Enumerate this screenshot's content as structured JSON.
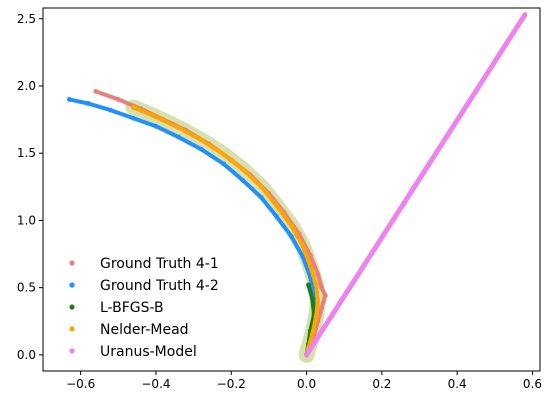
{
  "chart_data": {
    "type": "scatter",
    "title": "",
    "xlabel": "",
    "ylabel": "",
    "xlim": [
      -0.7,
      0.62
    ],
    "ylim": [
      -0.12,
      2.58
    ],
    "xticks": [
      -0.6,
      -0.4,
      -0.2,
      0.0,
      0.2,
      0.4,
      0.6
    ],
    "xtick_labels": [
      "−0.6",
      "−0.4",
      "−0.2",
      "0.0",
      "0.2",
      "0.4",
      "0.6"
    ],
    "yticks": [
      0.0,
      0.5,
      1.0,
      1.5,
      2.0,
      2.5
    ],
    "ytick_labels": [
      "0.0",
      "0.5",
      "1.0",
      "1.5",
      "2.0",
      "2.5"
    ],
    "grid": false,
    "legend_position": "lower-left",
    "series": [
      {
        "name": "Ground Truth 4-1",
        "color": "#e8807a",
        "points": [
          [
            -0.56,
            1.96
          ],
          [
            -0.5,
            1.9
          ],
          [
            -0.44,
            1.83
          ],
          [
            -0.38,
            1.75
          ],
          [
            -0.32,
            1.67
          ],
          [
            -0.26,
            1.57
          ],
          [
            -0.2,
            1.45
          ],
          [
            -0.15,
            1.34
          ],
          [
            -0.1,
            1.2
          ],
          [
            -0.06,
            1.06
          ],
          [
            -0.02,
            0.9
          ],
          [
            0.01,
            0.74
          ],
          [
            0.03,
            0.6
          ],
          [
            0.04,
            0.5
          ],
          [
            0.05,
            0.44
          ],
          [
            0.04,
            0.35
          ],
          [
            0.03,
            0.25
          ],
          [
            0.02,
            0.15
          ],
          [
            0.01,
            0.06
          ],
          [
            0.0,
            0.0
          ]
        ]
      },
      {
        "name": "Ground Truth 4-2",
        "color": "#1e90ff",
        "points": [
          [
            -0.63,
            1.9
          ],
          [
            -0.58,
            1.87
          ],
          [
            -0.52,
            1.82
          ],
          [
            -0.46,
            1.76
          ],
          [
            -0.4,
            1.7
          ],
          [
            -0.34,
            1.62
          ],
          [
            -0.28,
            1.53
          ],
          [
            -0.22,
            1.42
          ],
          [
            -0.17,
            1.3
          ],
          [
            -0.12,
            1.17
          ],
          [
            -0.08,
            1.03
          ],
          [
            -0.04,
            0.88
          ],
          [
            -0.01,
            0.73
          ],
          [
            0.01,
            0.58
          ],
          [
            0.02,
            0.45
          ],
          [
            0.02,
            0.32
          ],
          [
            0.015,
            0.2
          ],
          [
            0.01,
            0.1
          ],
          [
            0.0,
            0.0
          ]
        ]
      },
      {
        "name": "L-BFGS-B",
        "color": "#1a7f1a",
        "points": [
          [
            0.0,
            0.0
          ],
          [
            0.005,
            0.08
          ],
          [
            0.01,
            0.18
          ],
          [
            0.02,
            0.3
          ],
          [
            0.015,
            0.42
          ],
          [
            0.005,
            0.52
          ]
        ]
      },
      {
        "name": "Nelder-Mead",
        "color": "#ffa500",
        "points": [
          [
            -0.46,
            1.84
          ],
          [
            -0.4,
            1.77
          ],
          [
            -0.34,
            1.69
          ],
          [
            -0.28,
            1.6
          ],
          [
            -0.22,
            1.49
          ],
          [
            -0.17,
            1.38
          ],
          [
            -0.12,
            1.25
          ],
          [
            -0.08,
            1.11
          ],
          [
            -0.04,
            0.96
          ],
          [
            -0.01,
            0.81
          ],
          [
            0.01,
            0.66
          ],
          [
            0.025,
            0.52
          ],
          [
            0.03,
            0.4
          ],
          [
            0.025,
            0.28
          ],
          [
            0.015,
            0.15
          ],
          [
            0.005,
            0.05
          ],
          [
            0.0,
            0.0
          ]
        ]
      },
      {
        "name": "Uranus-Model",
        "color": "#ee82ee",
        "line": [
          [
            0.0,
            0.0
          ],
          [
            0.58,
            2.53
          ]
        ]
      }
    ]
  }
}
